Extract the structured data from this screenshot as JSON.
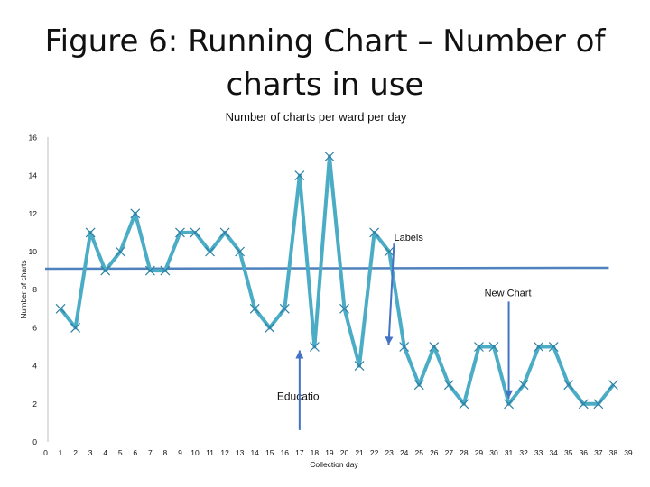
{
  "slide": {
    "title": "Figure 6: Running Chart – Number of charts in use"
  },
  "chart_data": {
    "type": "line",
    "title": "Number of charts per ward per day",
    "xlabel": "Collection day",
    "ylabel": "Number of charts",
    "xlim": [
      0,
      39
    ],
    "ylim": [
      0,
      16
    ],
    "y_ticks": [
      0,
      2,
      4,
      6,
      8,
      10,
      12,
      14,
      16
    ],
    "x_ticks": [
      0,
      1,
      2,
      3,
      4,
      5,
      6,
      7,
      8,
      9,
      10,
      11,
      12,
      13,
      14,
      15,
      16,
      17,
      18,
      19,
      20,
      21,
      22,
      23,
      24,
      25,
      26,
      27,
      28,
      29,
      30,
      31,
      32,
      33,
      34,
      35,
      36,
      37,
      38,
      39
    ],
    "grid": false,
    "series": [
      {
        "x": [
          1,
          2,
          3,
          4,
          5,
          6,
          7,
          8,
          9,
          10,
          11,
          12,
          13,
          14,
          15,
          16,
          17,
          18,
          19,
          20,
          21,
          22,
          23,
          24,
          25,
          26,
          27,
          28,
          29,
          30,
          31,
          32,
          33,
          34,
          35,
          36,
          37,
          38
        ],
        "values": [
          7,
          6,
          11,
          9,
          10,
          12,
          9,
          9,
          11,
          11,
          10,
          11,
          10,
          7,
          6,
          7,
          14,
          5,
          15,
          7,
          4,
          11,
          10,
          5,
          3,
          5,
          3,
          2,
          5,
          5,
          2,
          3,
          5,
          5,
          3,
          2,
          2,
          3
        ],
        "color": "#4BACC6"
      }
    ],
    "reference_line": {
      "value": 9.1,
      "color": "#4F81BD"
    },
    "annotations": [
      {
        "text": "Labels",
        "x": 23.2,
        "y": 10.7,
        "arrow_to": [
          23.2,
          5.1
        ]
      },
      {
        "text": "New Chart",
        "x": 31.0,
        "y": 7.8,
        "arrow_to": [
          31.0,
          2.1
        ]
      },
      {
        "text": "Educatio",
        "x": 17.0,
        "y": 2.3,
        "arrow_from": [
          17.0,
          2.8
        ],
        "arrow_to": [
          17.0,
          5.0
        ]
      }
    ]
  }
}
